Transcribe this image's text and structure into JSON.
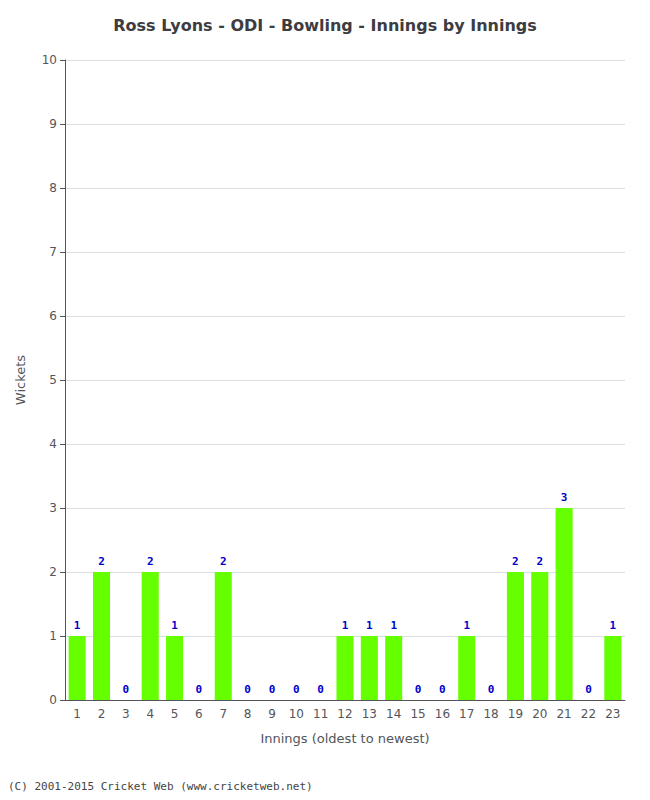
{
  "chart_data": {
    "type": "bar",
    "title": "Ross Lyons - ODI - Bowling - Innings by Innings",
    "x_label": "Innings (oldest to newest)",
    "y_label": "Wickets",
    "categories": [
      "1",
      "2",
      "3",
      "4",
      "5",
      "6",
      "7",
      "8",
      "9",
      "10",
      "11",
      "12",
      "13",
      "14",
      "15",
      "16",
      "17",
      "18",
      "19",
      "20",
      "21",
      "22",
      "23"
    ],
    "values": [
      1,
      2,
      0,
      2,
      1,
      0,
      2,
      0,
      0,
      0,
      0,
      1,
      1,
      1,
      0,
      0,
      1,
      0,
      2,
      2,
      3,
      0,
      1
    ],
    "color": "#66ff00",
    "ylim": [
      0,
      10
    ],
    "yticks": [
      0,
      1,
      2,
      3,
      4,
      5,
      6,
      7,
      8,
      9,
      10
    ],
    "grid": true,
    "data_labels": true,
    "annotation": "(C) 2001-2015 Cricket Web (www.cricketweb.net)"
  }
}
